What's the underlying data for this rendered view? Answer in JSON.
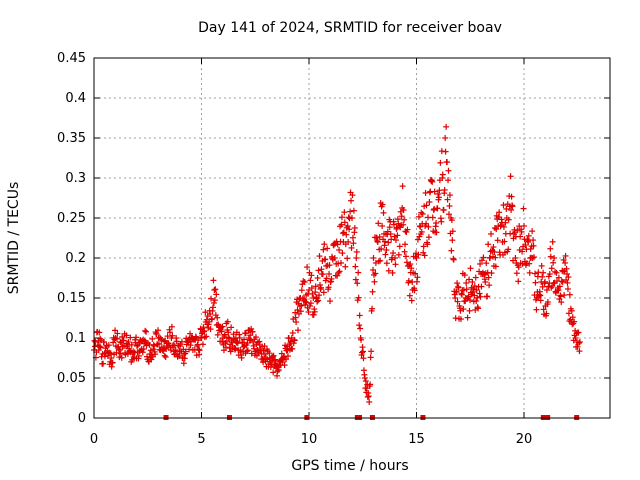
{
  "chart_data": {
    "type": "scatter",
    "title": "Day 141 of 2024, SRMTID for receiver boav",
    "xlabel": "GPS time / hours",
    "ylabel": "SRMTID / TECUs",
    "xlim": [
      0,
      24
    ],
    "ylim": [
      0,
      0.45
    ],
    "xticks": [
      0,
      5,
      10,
      15,
      20
    ],
    "xtick_labels": [
      "0",
      "5",
      "10",
      "15",
      "20"
    ],
    "yticks": [
      0,
      0.05,
      0.1,
      0.15,
      0.2,
      0.25,
      0.3,
      0.35,
      0.4,
      0.45
    ],
    "ytick_labels": [
      "0",
      "0.05",
      "0.1",
      "0.15",
      "0.2",
      "0.25",
      "0.3",
      "0.35",
      "0.4",
      "0.45"
    ],
    "grid": true,
    "marker": "+",
    "color": "#e00000",
    "series": [
      {
        "name": "SRMTID",
        "x": [
          0.0,
          0.2,
          0.4,
          0.6,
          0.8,
          1.0,
          1.2,
          1.4,
          1.6,
          1.8,
          2.0,
          2.2,
          2.4,
          2.6,
          2.8,
          3.0,
          3.2,
          3.4,
          3.6,
          3.8,
          4.0,
          4.2,
          4.4,
          4.6,
          4.8,
          5.0,
          5.2,
          5.4,
          5.6,
          5.8,
          6.0,
          6.2,
          6.4,
          6.6,
          6.8,
          7.0,
          7.2,
          7.4,
          7.6,
          7.8,
          8.0,
          8.2,
          8.4,
          8.6,
          8.8,
          9.0,
          9.2,
          9.4,
          9.6,
          9.8,
          10.0,
          10.2,
          10.4,
          10.6,
          10.8,
          11.0,
          11.2,
          11.4,
          11.6,
          11.8,
          12.0,
          12.2,
          12.4,
          12.6,
          12.8,
          13.0,
          13.2,
          13.4,
          13.6,
          13.8,
          14.0,
          14.2,
          14.4,
          14.6,
          14.8,
          15.0,
          15.2,
          15.4,
          15.6,
          15.8,
          16.0,
          16.2,
          16.4,
          16.6,
          16.8,
          17.0,
          17.2,
          17.4,
          17.6,
          17.8,
          18.0,
          18.2,
          18.4,
          18.6,
          18.8,
          19.0,
          19.2,
          19.4,
          19.6,
          19.8,
          20.0,
          20.2,
          20.4,
          20.6,
          20.8,
          21.0,
          21.2,
          21.4,
          21.6,
          21.8,
          22.0,
          22.2,
          22.4,
          22.6
        ],
        "y": [
          0.085,
          0.095,
          0.08,
          0.09,
          0.075,
          0.1,
          0.085,
          0.09,
          0.095,
          0.08,
          0.09,
          0.085,
          0.095,
          0.08,
          0.09,
          0.1,
          0.085,
          0.09,
          0.1,
          0.085,
          0.09,
          0.08,
          0.095,
          0.085,
          0.09,
          0.1,
          0.12,
          0.13,
          0.16,
          0.115,
          0.1,
          0.11,
          0.095,
          0.1,
          0.085,
          0.09,
          0.1,
          0.095,
          0.085,
          0.08,
          0.075,
          0.07,
          0.065,
          0.06,
          0.075,
          0.085,
          0.1,
          0.12,
          0.15,
          0.17,
          0.16,
          0.15,
          0.175,
          0.18,
          0.19,
          0.17,
          0.2,
          0.21,
          0.22,
          0.24,
          0.25,
          0.2,
          0.1,
          0.05,
          0.02,
          0.2,
          0.22,
          0.24,
          0.21,
          0.23,
          0.2,
          0.24,
          0.26,
          0.19,
          0.17,
          0.2,
          0.23,
          0.24,
          0.27,
          0.26,
          0.28,
          0.3,
          0.32,
          0.25,
          0.15,
          0.14,
          0.16,
          0.15,
          0.17,
          0.16,
          0.18,
          0.17,
          0.2,
          0.19,
          0.24,
          0.22,
          0.25,
          0.26,
          0.2,
          0.21,
          0.24,
          0.22,
          0.2,
          0.15,
          0.17,
          0.14,
          0.18,
          0.2,
          0.16,
          0.17,
          0.18,
          0.12,
          0.1,
          0.095
        ]
      }
    ],
    "data_gaps_x": [
      3.35,
      6.3,
      9.9,
      12.25,
      12.35,
      12.95,
      15.3,
      20.9,
      21.1,
      22.45
    ]
  }
}
